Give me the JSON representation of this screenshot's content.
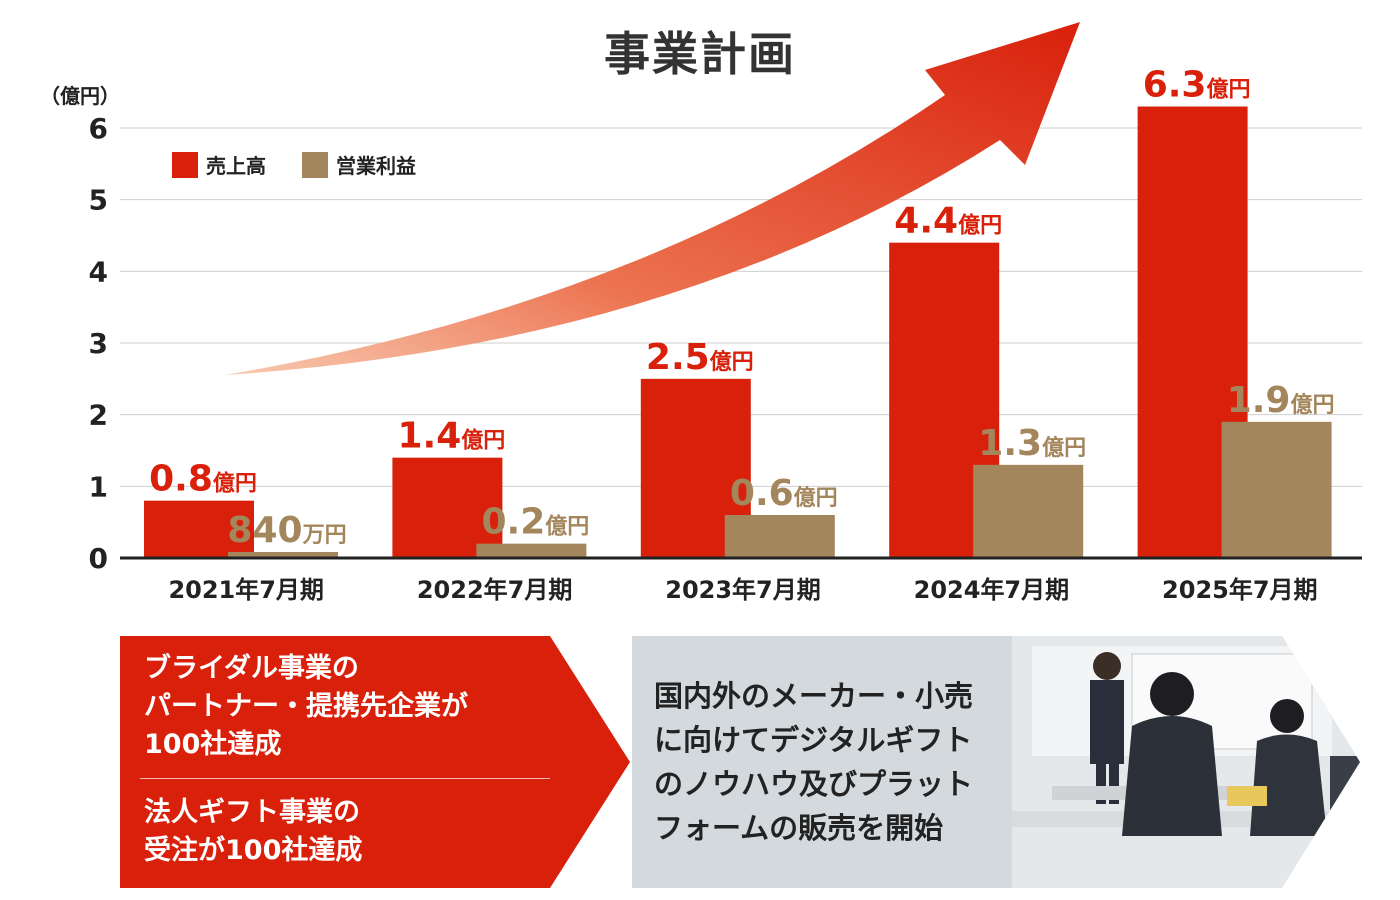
{
  "title": "事業計画",
  "unit": "（億円）",
  "legend": [
    {
      "label": "売上高",
      "color": "#d9200b"
    },
    {
      "label": "営業利益",
      "color": "#a4865d"
    }
  ],
  "chart_data": {
    "type": "bar",
    "title": "事業計画",
    "ylabel": "（億円）",
    "ylim": [
      0,
      6
    ],
    "yticks": [
      "0",
      "1",
      "2",
      "3",
      "4",
      "5",
      "6"
    ],
    "categories": [
      "2021年7月期",
      "2022年7月期",
      "2023年7月期",
      "2024年7月期",
      "2025年7月期"
    ],
    "series": [
      {
        "name": "売上高",
        "color": "#d9200b",
        "values": [
          0.8,
          1.4,
          2.5,
          4.4,
          6.3
        ],
        "labels": [
          [
            "0.8",
            "億円"
          ],
          [
            "1.4",
            "億円"
          ],
          [
            "2.5",
            "億円"
          ],
          [
            "4.4",
            "億円"
          ],
          [
            "6.3",
            "億円"
          ]
        ]
      },
      {
        "name": "営業利益",
        "color": "#a4865d",
        "values": [
          0.084,
          0.2,
          0.6,
          1.3,
          1.9
        ],
        "labels": [
          [
            "840",
            "万円"
          ],
          [
            "0.2",
            "億円"
          ],
          [
            "0.6",
            "億円"
          ],
          [
            "1.3",
            "億円"
          ],
          [
            "1.9",
            "億円"
          ]
        ]
      }
    ],
    "grid": true,
    "legend_position": "top-left"
  },
  "panel_left": {
    "block1": [
      "ブライダル事業の",
      "パートナー・提携先企業が",
      "100社達成"
    ],
    "block2": [
      "法人ギフト事業の",
      "受注が100社達成"
    ]
  },
  "panel_right": {
    "lines": [
      "国内外のメーカー・小売",
      "に向けてデジタルギフト",
      "のノウハウ及びプラット",
      "フォームの販売を開始"
    ]
  }
}
